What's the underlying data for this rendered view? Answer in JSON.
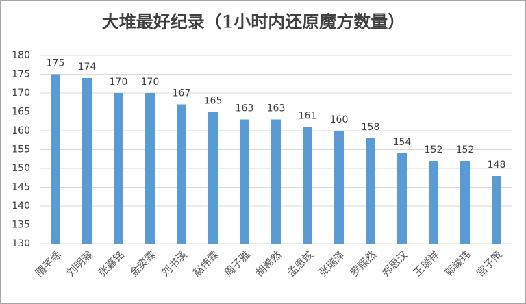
{
  "chart_data": {
    "type": "bar",
    "title": "大堆最好纪录（1小时内还原魔方数量）",
    "categories": [
      "隋芊缘",
      "刘明瀚",
      "张嘉铭",
      "金奕霖",
      "刘书溪",
      "赵伟霖",
      "周子雅",
      "胡希然",
      "孟思竣",
      "张瑞泽",
      "罗熙然",
      "郑思汉",
      "王瑞祥",
      "郭峻玮",
      "宫子策"
    ],
    "values": [
      175,
      174,
      170,
      170,
      167,
      165,
      163,
      163,
      161,
      160,
      158,
      154,
      152,
      152,
      148
    ],
    "color": "#5b9bd5",
    "ylim": [
      130,
      180
    ],
    "yticks": [
      130,
      135,
      140,
      145,
      150,
      155,
      160,
      165,
      170,
      175,
      180
    ],
    "grid": true
  }
}
